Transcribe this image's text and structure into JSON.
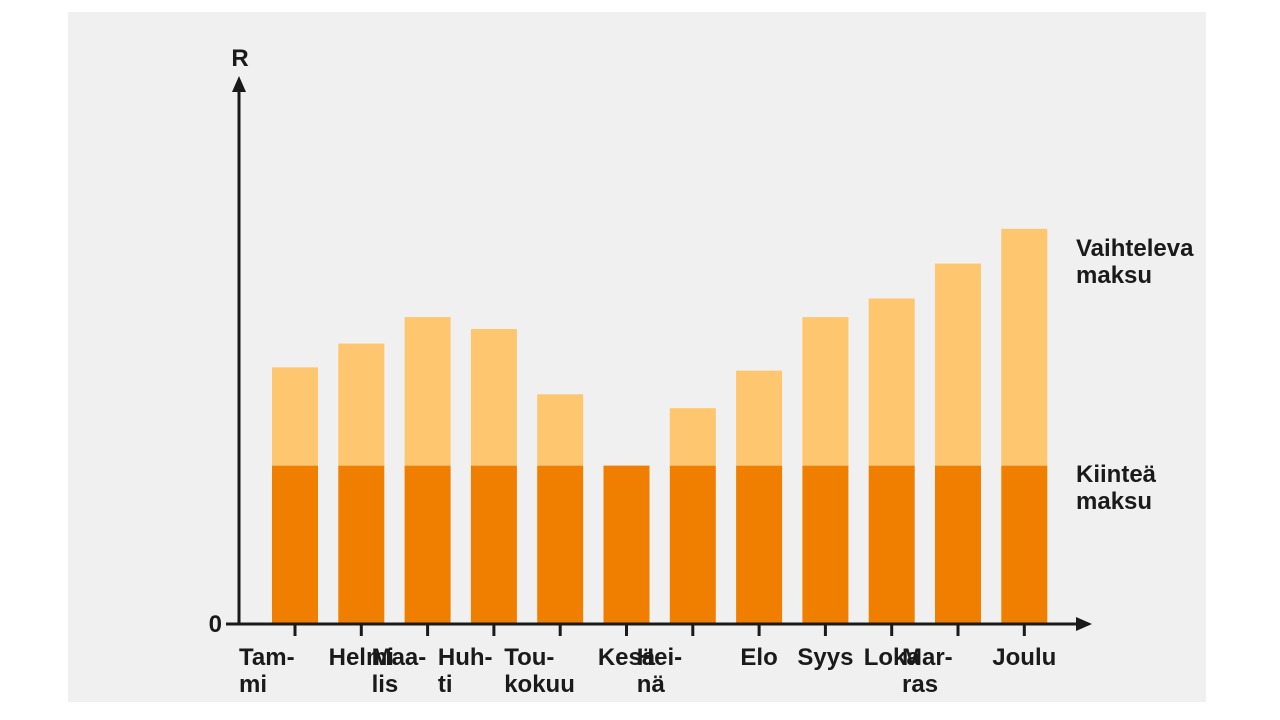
{
  "chart_data": {
    "type": "bar",
    "stacked": true,
    "ylabel": "R",
    "y_origin_label": "0",
    "categories": [
      [
        "Tam-",
        "mi"
      ],
      [
        "Helmi"
      ],
      [
        "Maa-",
        "lis"
      ],
      [
        "Huh-",
        "ti"
      ],
      [
        "Tou-",
        "kokuu"
      ],
      [
        "Kesä"
      ],
      [
        "Hei-",
        "nä"
      ],
      [
        "Elo"
      ],
      [
        "Syys"
      ],
      [
        "Loka"
      ],
      [
        "Mar-",
        "ras"
      ],
      [
        "Joulu"
      ]
    ],
    "ylim": [
      0,
      100
    ],
    "series": [
      {
        "name": [
          "Kiinteä",
          "maksu"
        ],
        "color": "#f07f00",
        "values": [
          40,
          40,
          40,
          40,
          40,
          40,
          40,
          40,
          40,
          40,
          40,
          40
        ]
      },
      {
        "name": [
          "Vaihteleva",
          "maksu"
        ],
        "color": "#fdc66f",
        "values": [
          24.8,
          30.8,
          37.5,
          34.5,
          18.0,
          0,
          14.5,
          24.0,
          37.5,
          42.2,
          51.0,
          59.8
        ]
      }
    ],
    "grid": false,
    "legend_placement": "right"
  }
}
